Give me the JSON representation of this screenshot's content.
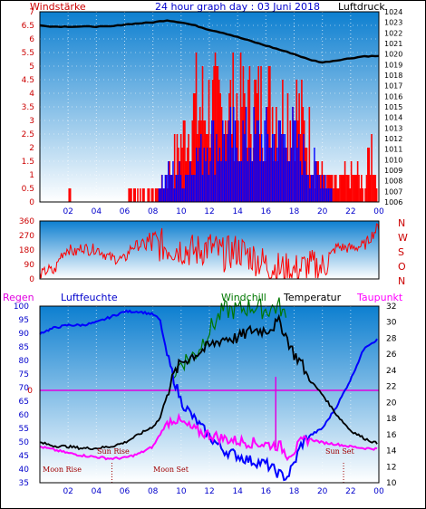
{
  "header": {
    "left_title": "Windstärke",
    "center_title": "24 hour graph day : 03 Juni 2018",
    "right_title": "Luftdruck"
  },
  "colors": {
    "wind_red": "#ff0000",
    "gust_blue": "#0000ff",
    "pressure_black": "#000000",
    "humidity_blue": "#0000ff",
    "temp_black": "#000000",
    "windchill_green": "#007700",
    "dewpoint_magenta": "#ff00ff",
    "rain_magenta": "#e000e0",
    "label_red": "#cc0000",
    "label_blue": "#0000cc",
    "panel_grad_top": "#0d7fd0",
    "panel_grad_bottom": "#ffffff"
  },
  "chart_data": [
    {
      "type": "line",
      "name": "wind_pressure",
      "x_ticks": [
        "02",
        "04",
        "06",
        "08",
        "10",
        "12",
        "14",
        "16",
        "18",
        "20",
        "22",
        "00"
      ],
      "y_left_ticks": [
        "0",
        "0.5",
        "1",
        "1.5",
        "2",
        "2.5",
        "3",
        "3.5",
        "4",
        "4.5",
        "5",
        "5.5",
        "6",
        "6.5",
        "7"
      ],
      "y_right_ticks": [
        "1006",
        "1007",
        "1008",
        "1009",
        "1010",
        "1011",
        "1012",
        "1013",
        "1014",
        "1015",
        "1016",
        "1017",
        "1018",
        "1019",
        "1020",
        "1021",
        "1022",
        "1023",
        "1024"
      ],
      "ylim_left": [
        0,
        7
      ],
      "ylim_right": [
        1006,
        1024
      ],
      "pressure": {
        "hours": [
          0,
          1,
          2,
          3,
          4,
          5,
          6,
          7,
          8,
          9,
          10,
          11,
          12,
          13,
          14,
          15,
          16,
          17,
          18,
          19,
          20,
          21,
          22,
          23,
          24
        ],
        "values": [
          1022.7,
          1022.6,
          1022.6,
          1022.6,
          1022.6,
          1022.6,
          1022.8,
          1022.9,
          1023.0,
          1023.2,
          1023.0,
          1022.7,
          1022.3,
          1022.0,
          1021.6,
          1021.2,
          1020.8,
          1020.4,
          1020.0,
          1019.5,
          1019.2,
          1019.4,
          1019.6,
          1019.8,
          1019.8
        ]
      },
      "wind_envelope": {
        "hours": [
          0,
          2,
          2.1,
          2.4,
          3,
          6,
          6.2,
          8,
          8.5,
          9,
          10,
          11,
          12,
          13,
          14,
          15,
          16,
          16.5,
          17,
          18,
          19,
          20,
          21,
          22,
          22.5,
          23,
          23.5,
          24
        ],
        "values": [
          0,
          0,
          1,
          0,
          0,
          0,
          0.5,
          0.5,
          1,
          1.5,
          3.5,
          5.5,
          5.5,
          5.5,
          5.5,
          5.5,
          5.5,
          6,
          5.5,
          5.5,
          4,
          1.5,
          1,
          1.5,
          1.5,
          0.5,
          3.5,
          0
        ]
      },
      "gust_envelope": {
        "hours": [
          8,
          9,
          10,
          12,
          14,
          16,
          17,
          18,
          19,
          20,
          21
        ],
        "values": [
          0,
          1.5,
          1.5,
          3.5,
          3.5,
          3.5,
          3.5,
          3.5,
          2,
          1.5,
          0
        ]
      }
    },
    {
      "type": "scatter",
      "name": "wind_direction",
      "y_left_ticks": [
        "0",
        "90",
        "180",
        "270",
        "360"
      ],
      "ylim": [
        0,
        360
      ],
      "y_right_labels": [
        "N",
        "W",
        "S",
        "O",
        "N"
      ],
      "x_ticks": [
        "02",
        "04",
        "06",
        "08",
        "10",
        "12",
        "14",
        "16",
        "18",
        "20",
        "22",
        "00"
      ],
      "direction": {
        "hours": [
          0,
          0.6,
          1,
          1.5,
          2,
          2.5,
          3,
          3.5,
          4,
          5,
          6,
          6.5,
          7,
          8,
          9,
          10,
          11,
          12,
          13,
          14,
          15,
          16,
          17,
          18,
          19,
          20,
          21,
          22,
          23,
          24
        ],
        "values": [
          20,
          60,
          40,
          150,
          190,
          160,
          200,
          180,
          190,
          130,
          120,
          200,
          210,
          220,
          200,
          190,
          170,
          200,
          150,
          180,
          140,
          90,
          60,
          50,
          80,
          70,
          200,
          190,
          210,
          330
        ]
      }
    },
    {
      "type": "line",
      "name": "humidity_temperature",
      "top_labels": [
        "Regen",
        "Luftfeuchte",
        "Windchill",
        "Temperatur",
        "Taupunkt"
      ],
      "y_left_ticks": [
        "35",
        "40",
        "45",
        "50",
        "55",
        "60",
        "65",
        "70",
        "75",
        "80",
        "85",
        "90",
        "95",
        "100"
      ],
      "y_right_ticks": [
        "10",
        "12",
        "14",
        "16",
        "18",
        "20",
        "22",
        "24",
        "26",
        "28",
        "30",
        "32"
      ],
      "ylim_left": [
        35,
        100
      ],
      "ylim_right": [
        10,
        32
      ],
      "rain_zero_label": "0",
      "x_ticks": [
        "02",
        "04",
        "06",
        "08",
        "10",
        "12",
        "14",
        "16",
        "18",
        "20",
        "22",
        "00"
      ],
      "annotations": [
        "Moon Rise",
        "Sun Rise",
        "Moon Set",
        "Sun Set"
      ],
      "humidity": {
        "hours": [
          0,
          1,
          2,
          3,
          4,
          5,
          6,
          7,
          8,
          8.5,
          9,
          9.5,
          10,
          11,
          12,
          13,
          14,
          15,
          16,
          17,
          17.5,
          18,
          18.5,
          19,
          20,
          21,
          22,
          23,
          24
        ],
        "values": [
          90,
          92,
          93,
          93,
          94,
          96,
          98,
          98,
          97,
          95,
          82,
          73,
          65,
          58,
          52,
          47,
          45,
          43,
          42,
          38,
          37,
          42,
          49,
          52,
          55,
          63,
          73,
          85,
          88
        ]
      },
      "temperature": {
        "hours": [
          0,
          1,
          2,
          3,
          4,
          5,
          6,
          7,
          7.5,
          8,
          8.5,
          9,
          9.5,
          10,
          11,
          12,
          13,
          14,
          15,
          16,
          17,
          17.5,
          18,
          18.5,
          19,
          20,
          21,
          22,
          23,
          24
        ],
        "values": [
          15,
          14.6,
          14.5,
          14.3,
          14.3,
          14.5,
          15,
          16,
          16.5,
          17,
          18,
          21,
          23.5,
          25,
          26,
          27,
          28,
          28,
          29,
          29,
          30,
          28,
          26,
          25,
          23,
          21,
          18.5,
          16.5,
          15.5,
          14.8
        ]
      },
      "windchill": {
        "hours": [
          9.5,
          10,
          11,
          12,
          13,
          14,
          15,
          16,
          17,
          17.5
        ],
        "values": [
          23.5,
          25,
          26,
          29,
          31.5,
          31.5,
          32,
          31.5,
          32,
          30
        ]
      },
      "dewpoint": {
        "hours": [
          0,
          1,
          2,
          3,
          4,
          5,
          6,
          7,
          8,
          8.5,
          9,
          9.5,
          10,
          11,
          12,
          13,
          14,
          15,
          16,
          17,
          17.5,
          18,
          18.5,
          19,
          20,
          21,
          22,
          23,
          24
        ],
        "values": [
          14.5,
          14.1,
          13.7,
          13.4,
          13.2,
          13.0,
          13.1,
          13.6,
          14.5,
          16,
          17.5,
          18,
          17.5,
          16.5,
          16,
          15.5,
          15.2,
          15,
          14.8,
          14.6,
          13.5,
          14,
          15,
          15.5,
          15,
          14.8,
          14.5,
          14.3,
          14.2
        ]
      },
      "rain_spike_hour": 16.7
    }
  ]
}
